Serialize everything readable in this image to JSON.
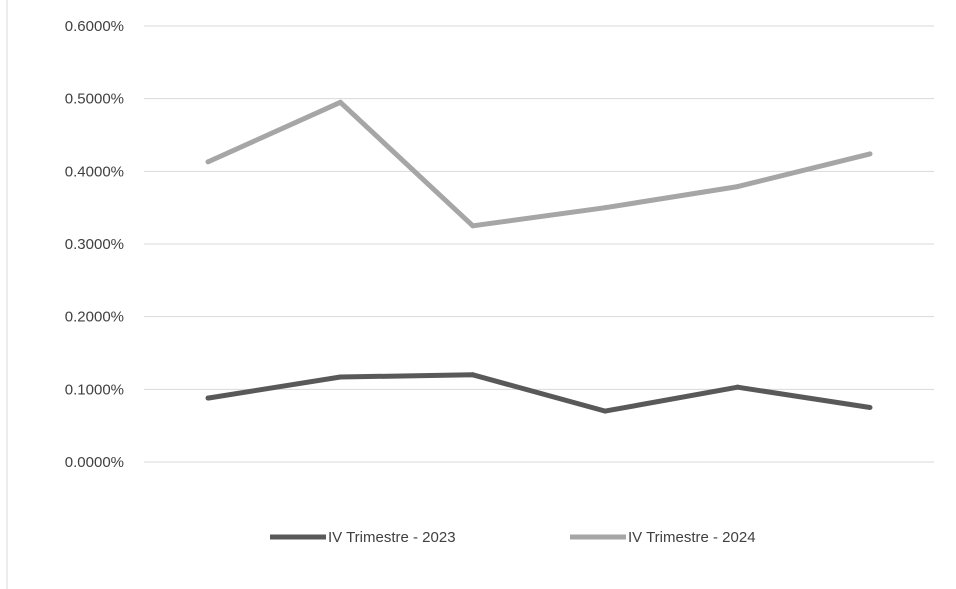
{
  "chart_data": {
    "type": "line",
    "title": "",
    "xlabel": "",
    "ylabel": "",
    "categories": [
      "",
      "",
      "",
      "",
      "",
      ""
    ],
    "yticks": [
      "0.0000%",
      "0.1000%",
      "0.2000%",
      "0.3000%",
      "0.4000%",
      "0.5000%",
      "0.6000%"
    ],
    "ylim": [
      0,
      0.006
    ],
    "grid": true,
    "legend_position": "bottom",
    "series": [
      {
        "name": "IV Trimestre - 2023",
        "color": "#595959",
        "values": [
          0.00088,
          0.00117,
          0.0012,
          0.0007,
          0.00103,
          0.00075
        ]
      },
      {
        "name": "IV Trimestre - 2024",
        "color": "#a6a6a6",
        "values": [
          0.00413,
          0.00495,
          0.00325,
          0.0035,
          0.00379,
          0.00424
        ]
      }
    ]
  }
}
